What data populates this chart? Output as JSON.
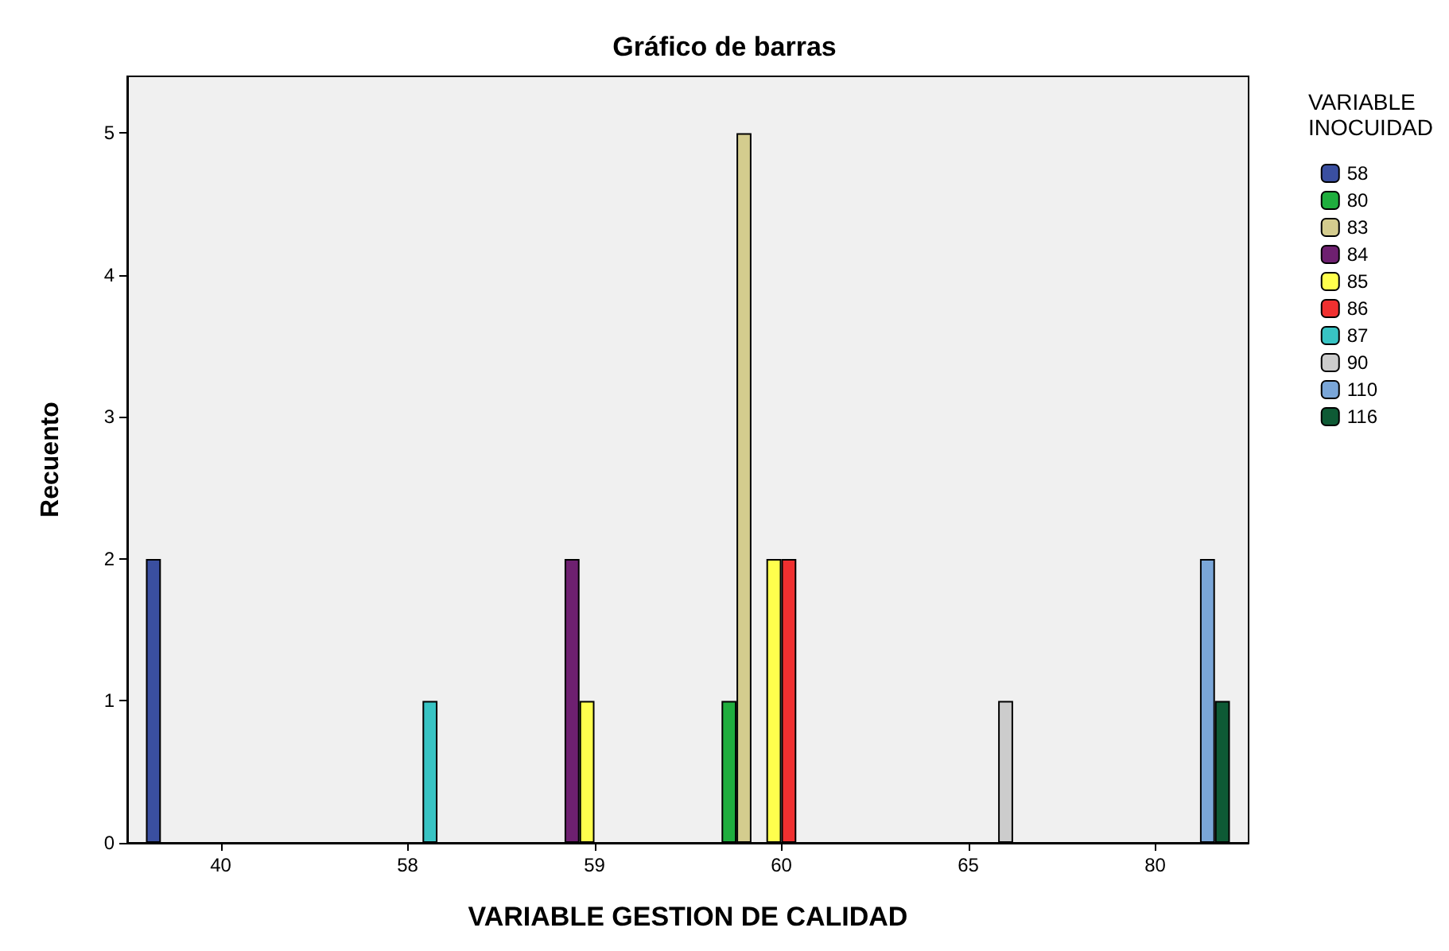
{
  "chart_data": {
    "type": "bar",
    "title": "Gráfico de barras",
    "xlabel": "VARIABLE GESTION DE CALIDAD",
    "ylabel": "Recuento",
    "legend_title": "VARIABLE\nINOCUIDAD",
    "categories": [
      "40",
      "58",
      "59",
      "60",
      "65",
      "80"
    ],
    "series": [
      {
        "name": "58",
        "color": "#3a4fa0",
        "values": [
          2,
          null,
          null,
          null,
          null,
          null
        ]
      },
      {
        "name": "80",
        "color": "#1fae3e",
        "values": [
          null,
          null,
          null,
          1,
          null,
          null
        ]
      },
      {
        "name": "83",
        "color": "#d4cc8e",
        "values": [
          null,
          null,
          null,
          5,
          null,
          null
        ]
      },
      {
        "name": "84",
        "color": "#6e2070",
        "values": [
          null,
          null,
          2,
          null,
          null,
          null
        ]
      },
      {
        "name": "85",
        "color": "#ffff4d",
        "values": [
          null,
          null,
          1,
          2,
          null,
          null
        ]
      },
      {
        "name": "86",
        "color": "#f03030",
        "values": [
          null,
          null,
          null,
          2,
          null,
          null
        ]
      },
      {
        "name": "87",
        "color": "#38c4c4",
        "values": [
          null,
          1,
          null,
          null,
          null,
          null
        ]
      },
      {
        "name": "90",
        "color": "#cccccc",
        "values": [
          null,
          null,
          null,
          null,
          1,
          null
        ]
      },
      {
        "name": "110",
        "color": "#7aa6d8",
        "values": [
          null,
          null,
          null,
          null,
          null,
          2
        ]
      },
      {
        "name": "116",
        "color": "#0e5a35",
        "values": [
          null,
          null,
          null,
          null,
          null,
          1
        ]
      }
    ],
    "ylim": [
      0,
      5.4
    ],
    "yticks": [
      0,
      1,
      2,
      3,
      4,
      5
    ],
    "grid": false,
    "legend": "right"
  }
}
